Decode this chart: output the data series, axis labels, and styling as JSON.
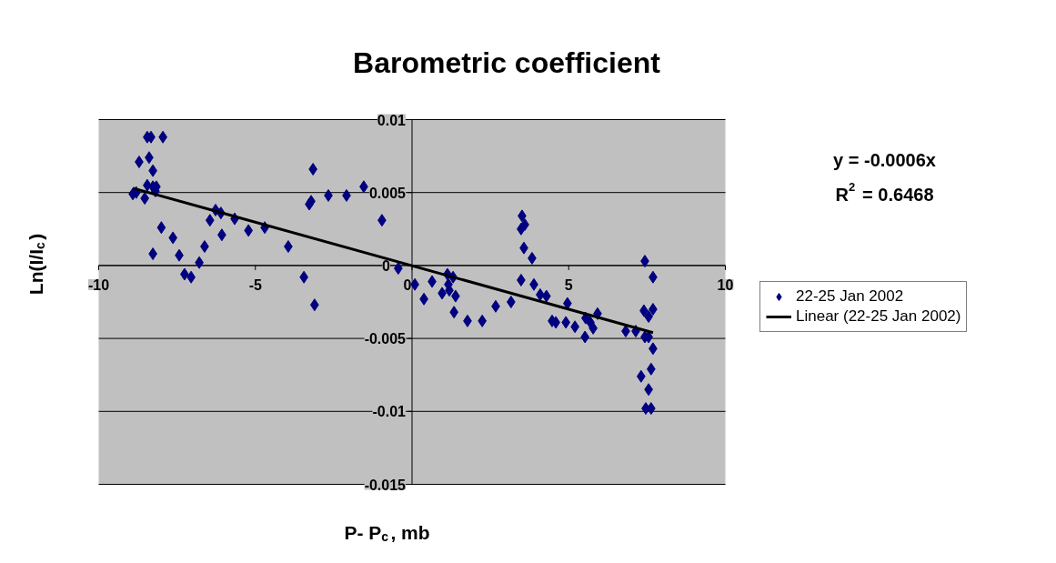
{
  "chart_data": {
    "type": "scatter",
    "title": "Barometric coefficient",
    "xlabel": "P- P$_{c}$, mb",
    "ylabel": "Ln(I/I$_{c}$)",
    "xlim": [
      -10,
      10
    ],
    "ylim": [
      -0.015,
      0.01
    ],
    "xticks": [
      -10,
      -5,
      0,
      5,
      10
    ],
    "yticks": [
      -0.015,
      -0.01,
      -0.005,
      0,
      0.005,
      0.01
    ],
    "grid": "y",
    "legend": "right",
    "annotations": [
      "y = -0.0006x",
      "R$^{2}$ = 0.6468"
    ],
    "series": [
      {
        "name": "22-25 Jan 2002",
        "color": "#000080",
        "marker": "diamond",
        "x": [
          -8.91,
          -8.8,
          -8.71,
          -8.53,
          -8.45,
          -8.33,
          -8.39,
          -8.45,
          -8.27,
          -8.27,
          -8.16,
          -8.19,
          -7.95,
          -8.27,
          -8.0,
          -7.63,
          -7.43,
          -7.26,
          -7.05,
          -6.79,
          -6.62,
          -6.45,
          -6.27,
          -6.1,
          -6.07,
          -5.66,
          -5.22,
          -4.7,
          -3.95,
          -3.45,
          -3.28,
          -3.22,
          -3.16,
          -3.11,
          -2.67,
          -2.09,
          -1.54,
          -0.96,
          -0.44,
          0.09,
          0.38,
          0.64,
          1.13,
          1.31,
          1.16,
          0.96,
          1.19,
          1.39,
          1.34,
          1.77,
          2.24,
          2.67,
          3.16,
          3.48,
          3.51,
          3.48,
          3.6,
          3.57,
          3.83,
          3.89,
          4.09,
          4.29,
          4.47,
          4.59,
          4.91,
          4.96,
          5.2,
          5.52,
          5.54,
          5.69,
          5.78,
          5.92,
          6.82,
          7.14,
          7.43,
          7.69,
          7.4,
          7.69,
          7.55,
          7.43,
          7.55,
          7.69,
          7.31,
          7.63,
          7.55,
          7.46,
          7.63
        ],
        "values": [
          0.0049,
          0.005,
          0.0071,
          0.0046,
          0.0088,
          0.0088,
          0.0074,
          0.0055,
          0.0054,
          0.0065,
          0.0054,
          0.0051,
          0.0088,
          0.0008,
          0.0026,
          0.0019,
          0.0007,
          -0.0006,
          -0.0008,
          0.0002,
          0.0013,
          0.0031,
          0.0038,
          0.0036,
          0.0021,
          0.0032,
          0.0024,
          0.0026,
          0.0013,
          -0.0008,
          0.0042,
          0.0044,
          0.0066,
          -0.0027,
          0.0048,
          0.0048,
          0.0054,
          0.0031,
          -0.0002,
          -0.0013,
          -0.0023,
          -0.0011,
          -0.0006,
          -0.0008,
          -0.0013,
          -0.0019,
          -0.0017,
          -0.0021,
          -0.0032,
          -0.0038,
          -0.0038,
          -0.0028,
          -0.0025,
          -0.001,
          0.0034,
          0.0025,
          0.0028,
          0.0012,
          0.0005,
          -0.0013,
          -0.002,
          -0.0021,
          -0.0038,
          -0.0039,
          -0.0039,
          -0.0026,
          -0.0042,
          -0.0049,
          -0.0036,
          -0.0039,
          -0.0043,
          -0.0033,
          -0.0045,
          -0.0045,
          0.0003,
          -0.0008,
          -0.0031,
          -0.003,
          -0.0035,
          -0.0049,
          -0.0049,
          -0.0057,
          -0.0076,
          -0.0071,
          -0.0085,
          -0.0098,
          -0.0098
        ]
      },
      {
        "name": "Linear (22-25 Jan 2002)",
        "color": "#000000",
        "type": "line",
        "x": [
          -8.91,
          7.69
        ],
        "values": [
          0.0053,
          -0.0046
        ]
      }
    ]
  }
}
